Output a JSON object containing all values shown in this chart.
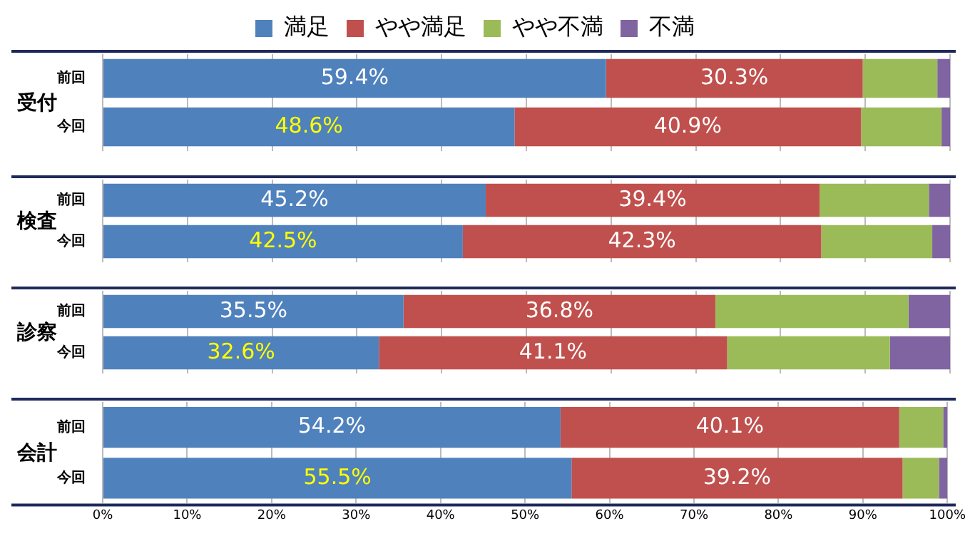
{
  "chart_data": [
    {
      "type": "bar",
      "orientation": "horizontal",
      "stacked": true,
      "ylabel": "受付",
      "categories": [
        "前回",
        "今回"
      ],
      "legend": "top",
      "grid": "x",
      "tick_labels": "y",
      "xlim": [
        0,
        100
      ],
      "xticks": [
        {
          "value": 0,
          "label": null
        },
        {
          "value": 10,
          "label": null
        },
        {
          "value": 20,
          "label": null
        },
        {
          "value": 30,
          "label": null
        },
        {
          "value": 40,
          "label": null
        },
        {
          "value": 50,
          "label": null
        },
        {
          "value": 60,
          "label": null
        },
        {
          "value": 70,
          "label": null
        },
        {
          "value": 80,
          "label": null
        },
        {
          "value": 90,
          "label": null
        },
        {
          "value": 100,
          "label": null
        }
      ],
      "series": [
        {
          "name": "満足",
          "color": "#4f81bd",
          "values": [
            59.4,
            48.6
          ],
          "value_labels": [
            "59.4%",
            "48.6%"
          ]
        },
        {
          "name": "やや満足",
          "color": "#c0504d",
          "values": [
            30.3,
            40.9
          ],
          "value_labels": [
            "30.3%",
            "40.9%"
          ]
        },
        {
          "name": "やや不満",
          "color": "#9bbb59",
          "values": [
            8.8,
            9.5
          ]
        },
        {
          "name": "不満",
          "color": "#8064a2",
          "values": [
            1.5,
            1.0
          ]
        }
      ]
    },
    {
      "type": "bar",
      "orientation": "horizontal",
      "stacked": true,
      "ylabel": "検査",
      "categories": [
        "前回",
        "今回"
      ],
      "legend": false,
      "grid": "x",
      "tick_labels": "y",
      "xlim": [
        0,
        100
      ],
      "xticks": [
        {
          "value": 0,
          "label": null
        },
        {
          "value": 10,
          "label": null
        },
        {
          "value": 20,
          "label": null
        },
        {
          "value": 30,
          "label": null
        },
        {
          "value": 40,
          "label": null
        },
        {
          "value": 50,
          "label": null
        },
        {
          "value": 60,
          "label": null
        },
        {
          "value": 70,
          "label": null
        },
        {
          "value": 80,
          "label": null
        },
        {
          "value": 90,
          "label": null
        },
        {
          "value": 100,
          "label": null
        }
      ],
      "series": [
        {
          "color": "#4f81bd",
          "values": [
            45.2,
            42.5
          ],
          "value_labels": [
            "45.2%",
            "42.5%"
          ]
        },
        {
          "color": "#c0504d",
          "values": [
            39.4,
            42.3
          ],
          "value_labels": [
            "39.4%",
            "42.3%"
          ]
        },
        {
          "color": "#9bbb59",
          "values": [
            12.9,
            13.1
          ]
        },
        {
          "color": "#8064a2",
          "values": [
            2.5,
            2.1
          ]
        }
      ]
    },
    {
      "type": "bar",
      "orientation": "horizontal",
      "stacked": true,
      "ylabel": "診察",
      "categories": [
        "前回",
        "今回"
      ],
      "legend": false,
      "grid": "x",
      "tick_labels": "y",
      "xlim": [
        0,
        100
      ],
      "xticks": [
        {
          "value": 0,
          "label": null
        },
        {
          "value": 10,
          "label": null
        },
        {
          "value": 20,
          "label": null
        },
        {
          "value": 30,
          "label": null
        },
        {
          "value": 40,
          "label": null
        },
        {
          "value": 50,
          "label": null
        },
        {
          "value": 60,
          "label": null
        },
        {
          "value": 70,
          "label": null
        },
        {
          "value": 80,
          "label": null
        },
        {
          "value": 90,
          "label": null
        },
        {
          "value": 100,
          "label": null
        }
      ],
      "series": [
        {
          "color": "#4f81bd",
          "values": [
            35.5,
            32.6
          ],
          "value_labels": [
            "35.5%",
            "32.6%"
          ]
        },
        {
          "color": "#c0504d",
          "values": [
            36.8,
            41.1
          ],
          "value_labels": [
            "36.8%",
            "41.1%"
          ]
        },
        {
          "color": "#9bbb59",
          "values": [
            22.8,
            19.2
          ]
        },
        {
          "color": "#8064a2",
          "values": [
            4.9,
            7.1
          ]
        }
      ]
    },
    {
      "type": "bar",
      "orientation": "horizontal",
      "stacked": true,
      "ylabel": "会計",
      "categories": [
        "前回",
        "今回"
      ],
      "legend": false,
      "grid": "x",
      "xlim": [
        0,
        100
      ],
      "xticks": [
        {
          "value": 0,
          "label": "0%"
        },
        {
          "value": 10,
          "label": "10%"
        },
        {
          "value": 20,
          "label": "20%"
        },
        {
          "value": 30,
          "label": "30%"
        },
        {
          "value": 40,
          "label": "40%"
        },
        {
          "value": 50,
          "label": "50%"
        },
        {
          "value": 60,
          "label": "60%"
        },
        {
          "value": 70,
          "label": "70%"
        },
        {
          "value": 80,
          "label": "80%"
        },
        {
          "value": 90,
          "label": "90%"
        },
        {
          "value": 100,
          "label": "100%"
        }
      ],
      "series": [
        {
          "color": "#4f81bd",
          "values": [
            54.2,
            55.5
          ],
          "value_labels": [
            "54.2%",
            "55.5%"
          ]
        },
        {
          "color": "#c0504d",
          "values": [
            40.1,
            39.2
          ],
          "value_labels": [
            "40.1%",
            "39.2%"
          ]
        },
        {
          "color": "#9bbb59",
          "values": [
            5.2,
            4.3
          ]
        },
        {
          "color": "#8064a2",
          "values": [
            0.5,
            1.0
          ]
        }
      ]
    }
  ]
}
